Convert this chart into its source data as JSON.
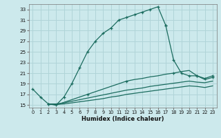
{
  "xlabel": "Humidex (Indice chaleur)",
  "bg_color": "#cce9ec",
  "grid_color": "#b0d4d8",
  "line_color": "#1a6b5e",
  "xlim": [
    -0.5,
    23.5
  ],
  "ylim": [
    14.5,
    34.0
  ],
  "yticks": [
    15,
    17,
    19,
    21,
    23,
    25,
    27,
    29,
    31,
    33
  ],
  "xticks": [
    0,
    1,
    2,
    3,
    4,
    5,
    6,
    7,
    8,
    9,
    10,
    11,
    12,
    13,
    14,
    15,
    16,
    17,
    18,
    19,
    20,
    21,
    22,
    23
  ],
  "line1_x": [
    0,
    1,
    2,
    3,
    4,
    5,
    6,
    7,
    8,
    9,
    10,
    11,
    12,
    13,
    14,
    15,
    16,
    17
  ],
  "line1_y": [
    18.0,
    16.5,
    15.2,
    15.0,
    16.5,
    19.0,
    22.0,
    25.0,
    27.0,
    28.5,
    29.5,
    31.0,
    31.5,
    32.0,
    32.5,
    33.0,
    33.5,
    30.0
  ],
  "line2_x": [
    17,
    18,
    19,
    20,
    21,
    22,
    23
  ],
  "line2_y": [
    30.0,
    23.5,
    21.0,
    20.5,
    20.5,
    20.0,
    20.5
  ],
  "line3_x": [
    2,
    3,
    4,
    5,
    6,
    7,
    8,
    9,
    10,
    11,
    12,
    13,
    14,
    15,
    16,
    17,
    18,
    19,
    20,
    21,
    22,
    23
  ],
  "line3_y": [
    15.2,
    15.0,
    15.5,
    16.0,
    16.5,
    17.0,
    17.5,
    18.0,
    18.5,
    19.0,
    19.5,
    19.8,
    20.0,
    20.3,
    20.5,
    20.8,
    21.0,
    21.3,
    21.5,
    20.5,
    19.8,
    20.2
  ],
  "line4_x": [
    2,
    3,
    4,
    5,
    6,
    7,
    8,
    9,
    10,
    11,
    12,
    13,
    14,
    15,
    16,
    17,
    18,
    19,
    20,
    21,
    22,
    23
  ],
  "line4_y": [
    15.2,
    15.2,
    15.4,
    15.7,
    16.0,
    16.3,
    16.6,
    16.9,
    17.2,
    17.5,
    17.8,
    18.0,
    18.2,
    18.5,
    18.7,
    18.9,
    19.1,
    19.3,
    19.5,
    19.3,
    19.2,
    19.5
  ],
  "line5_x": [
    2,
    3,
    4,
    5,
    6,
    7,
    8,
    9,
    10,
    11,
    12,
    13,
    14,
    15,
    16,
    17,
    18,
    19,
    20,
    21,
    22,
    23
  ],
  "line5_y": [
    15.2,
    15.1,
    15.2,
    15.4,
    15.6,
    15.8,
    16.0,
    16.2,
    16.5,
    16.7,
    17.0,
    17.2,
    17.4,
    17.6,
    17.8,
    18.0,
    18.2,
    18.4,
    18.6,
    18.5,
    18.3,
    18.6
  ]
}
